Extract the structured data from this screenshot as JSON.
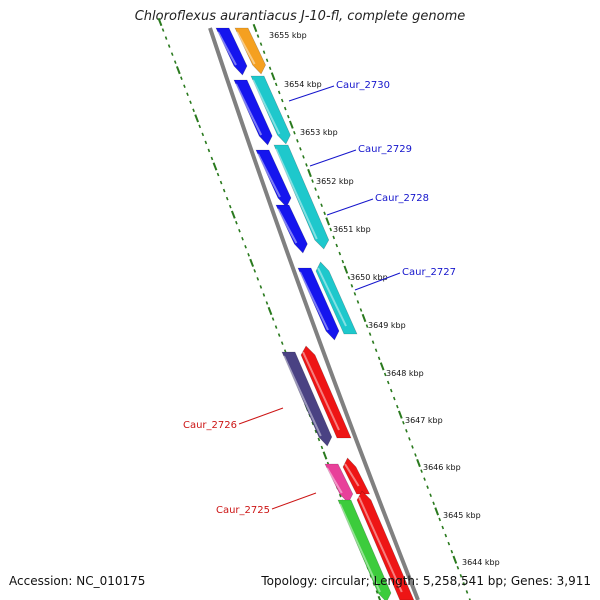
{
  "title": "Chloroflexus aurantiacus J-10-fl, complete genome",
  "accession": "Accession: NC_010175",
  "info": "Topology: circular; Length: 5,258,541 bp; Genes: 3,911",
  "colors": {
    "backbone": "#808080",
    "ticks": "#2a7a1e",
    "blue": "#1515ee",
    "cyan": "#1ec8cc",
    "orange": "#f5a020",
    "red": "#ee1515",
    "purple": "#4a4283",
    "magenta": "#e8409a",
    "green": "#3ccc3c",
    "label_blue": "#1515cc",
    "label_red": "#cc1515"
  },
  "kbp_labels": [
    "3655 kbp",
    "3654 kbp",
    "3653 kbp",
    "3652 kbp",
    "3651 kbp",
    "3650 kbp",
    "3649 kbp",
    "3648 kbp",
    "3647 kbp",
    "3646 kbp",
    "3645 kbp",
    "3644 kbp"
  ],
  "gene_labels": [
    "Caur_2730",
    "Caur_2729",
    "Caur_2728",
    "Caur_2727",
    "Caur_2726",
    "Caur_2725"
  ]
}
